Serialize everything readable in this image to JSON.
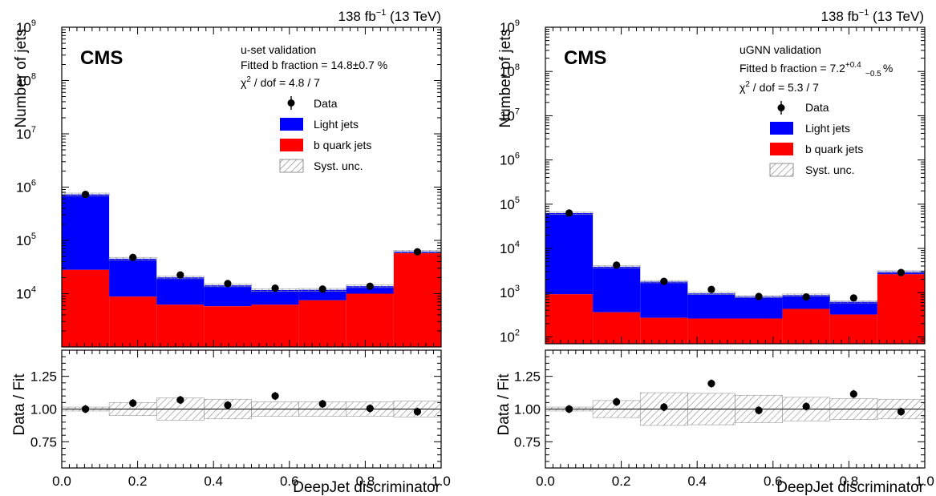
{
  "chart_data": [
    {
      "type": "bar",
      "cms_label": "CMS",
      "lumi_label": "138 fb",
      "lumi_exp": "−1",
      "energy_label": " (13 TeV)",
      "annotations": [
        "u-set validation",
        "Fitted b fraction = 14.8±0.7 %",
        "χ",
        "2",
        " / dof = 4.8 / 7"
      ],
      "xlabel": "DeepJet discriminator",
      "ylabel": "Number of jets",
      "ratio_ylabel": "Data / Fit",
      "yscale": "log",
      "ylim": [
        1000,
        1000000000
      ],
      "ratio_ylim": [
        0.55,
        1.45
      ],
      "xlim": [
        0,
        1
      ],
      "x_ticks": [
        "0.0",
        "0.2",
        "0.4",
        "0.6",
        "0.8",
        "1.0"
      ],
      "y_tick_exponents": [
        "4",
        "5",
        "6",
        "7",
        "8",
        "9"
      ],
      "ratio_ticks": [
        "0.75",
        "1.00",
        "1.25"
      ],
      "bin_edges": [
        0,
        0.125,
        0.25,
        0.375,
        0.5,
        0.625,
        0.75,
        0.875,
        1.0
      ],
      "series": [
        {
          "name": "Data",
          "values": [
            730000,
            48000,
            22500,
            15500,
            12700,
            12200,
            13800,
            61000
          ]
        },
        {
          "name": "Light jets",
          "values": [
            700000,
            36500,
            14000,
            8500,
            5500,
            4300,
            3800,
            3500
          ]
        },
        {
          "name": "b quark jets",
          "values": [
            28000,
            8800,
            6200,
            5800,
            6200,
            7500,
            10000,
            58000
          ]
        }
      ],
      "ratio_values": [
        1.0,
        1.045,
        1.07,
        1.03,
        1.1,
        1.04,
        1.005,
        0.98
      ],
      "ratio_unc": [
        0.015,
        0.05,
        0.085,
        0.075,
        0.055,
        0.055,
        0.055,
        0.06
      ],
      "legend": [
        "Data",
        "Light jets",
        "b quark jets",
        "Syst. unc."
      ],
      "legend_position": "top-right",
      "colors": {
        "light": "#0000ff",
        "b": "#ff0000",
        "data": "#000000"
      }
    },
    {
      "type": "bar",
      "cms_label": "CMS",
      "lumi_label": "138 fb",
      "lumi_exp": "−1",
      "energy_label": " (13 TeV)",
      "annotations": [
        "uGNN validation",
        "Fitted b fraction = 7.2",
        "+0.4",
        "−0.5",
        " %",
        "χ",
        "2",
        " / dof = 5.3 / 7"
      ],
      "xlabel": "DeepJet discriminator",
      "ylabel": "Number of jets",
      "ratio_ylabel": "Data / Fit",
      "yscale": "log",
      "ylim": [
        70,
        1000000000
      ],
      "ratio_ylim": [
        0.55,
        1.45
      ],
      "xlim": [
        0,
        1
      ],
      "x_ticks": [
        "0.0",
        "0.2",
        "0.4",
        "0.6",
        "0.8",
        "1.0"
      ],
      "y_tick_exponents": [
        "2",
        "3",
        "4",
        "5",
        "6",
        "7",
        "8",
        "9"
      ],
      "ratio_ticks": [
        "0.75",
        "1.00",
        "1.25"
      ],
      "bin_edges": [
        0,
        0.125,
        0.25,
        0.375,
        0.5,
        0.625,
        0.75,
        0.875,
        1.0
      ],
      "series": [
        {
          "name": "Data",
          "values": [
            63000,
            4200,
            1800,
            1180,
            820,
            800,
            760,
            2850
          ]
        },
        {
          "name": "Light jets",
          "values": [
            62000,
            3500,
            1500,
            700,
            550,
            450,
            300,
            350
          ]
        },
        {
          "name": "b quark jets",
          "values": [
            920,
            360,
            270,
            260,
            260,
            430,
            320,
            2600
          ]
        }
      ],
      "ratio_values": [
        1.0,
        1.055,
        1.015,
        1.195,
        0.99,
        1.02,
        1.115,
        0.98
      ],
      "ratio_unc": [
        0.015,
        0.065,
        0.125,
        0.12,
        0.105,
        0.09,
        0.08,
        0.075
      ],
      "legend": [
        "Data",
        "Light jets",
        "b quark jets",
        "Syst. unc."
      ],
      "legend_position": "top-right",
      "colors": {
        "light": "#0000ff",
        "b": "#ff0000",
        "data": "#000000"
      }
    }
  ]
}
